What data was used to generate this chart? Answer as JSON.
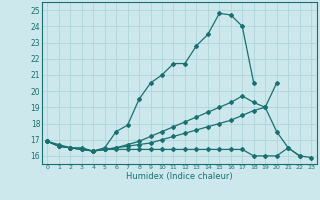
{
  "xlabel": "Humidex (Indice chaleur)",
  "x_ticks": [
    0,
    1,
    2,
    3,
    4,
    5,
    6,
    7,
    8,
    9,
    10,
    11,
    12,
    13,
    14,
    15,
    16,
    17,
    18,
    19,
    20,
    21,
    22,
    23
  ],
  "y_ticks": [
    16,
    17,
    18,
    19,
    20,
    21,
    22,
    23,
    24,
    25
  ],
  "xlim": [
    -0.5,
    23.5
  ],
  "ylim": [
    15.5,
    25.5
  ],
  "background_color": "#cce8ed",
  "grid_color": "#aed4da",
  "line_color": "#1a7070",
  "curves": [
    {
      "x": [
        0,
        1,
        2,
        3,
        4,
        5,
        6,
        7,
        8,
        9,
        10,
        11,
        12,
        13,
        14,
        15,
        16,
        17,
        18
      ],
      "y": [
        16.9,
        16.7,
        16.5,
        16.5,
        16.3,
        16.5,
        17.5,
        17.9,
        19.5,
        20.5,
        21.0,
        21.7,
        21.7,
        22.8,
        23.5,
        24.8,
        24.7,
        24.0,
        20.5
      ]
    },
    {
      "x": [
        0,
        1,
        2,
        3,
        4,
        5,
        6,
        7,
        8,
        9,
        10,
        11,
        12,
        13,
        14,
        15,
        16,
        17,
        18,
        19,
        20
      ],
      "y": [
        16.9,
        16.6,
        16.5,
        16.4,
        16.3,
        16.4,
        16.5,
        16.6,
        16.7,
        16.8,
        17.0,
        17.2,
        17.4,
        17.6,
        17.8,
        18.0,
        18.2,
        18.5,
        18.8,
        19.0,
        20.5
      ]
    },
    {
      "x": [
        0,
        1,
        2,
        3,
        4,
        5,
        6,
        7,
        8,
        9,
        10,
        11,
        12,
        13,
        14,
        15,
        16,
        17,
        18,
        19,
        20,
        21,
        22
      ],
      "y": [
        16.9,
        16.6,
        16.5,
        16.4,
        16.3,
        16.4,
        16.5,
        16.7,
        16.9,
        17.2,
        17.5,
        17.8,
        18.1,
        18.4,
        18.7,
        19.0,
        19.3,
        19.7,
        19.3,
        19.0,
        17.5,
        16.5,
        16.0
      ]
    },
    {
      "x": [
        0,
        1,
        2,
        3,
        4,
        5,
        6,
        7,
        8,
        9,
        10,
        11,
        12,
        13,
        14,
        15,
        16,
        17,
        18,
        19,
        20,
        21,
        22,
        23
      ],
      "y": [
        16.9,
        16.6,
        16.5,
        16.4,
        16.3,
        16.4,
        16.4,
        16.4,
        16.4,
        16.4,
        16.4,
        16.4,
        16.4,
        16.4,
        16.4,
        16.4,
        16.4,
        16.4,
        16.0,
        16.0,
        16.0,
        16.5,
        16.0,
        15.9
      ]
    }
  ]
}
